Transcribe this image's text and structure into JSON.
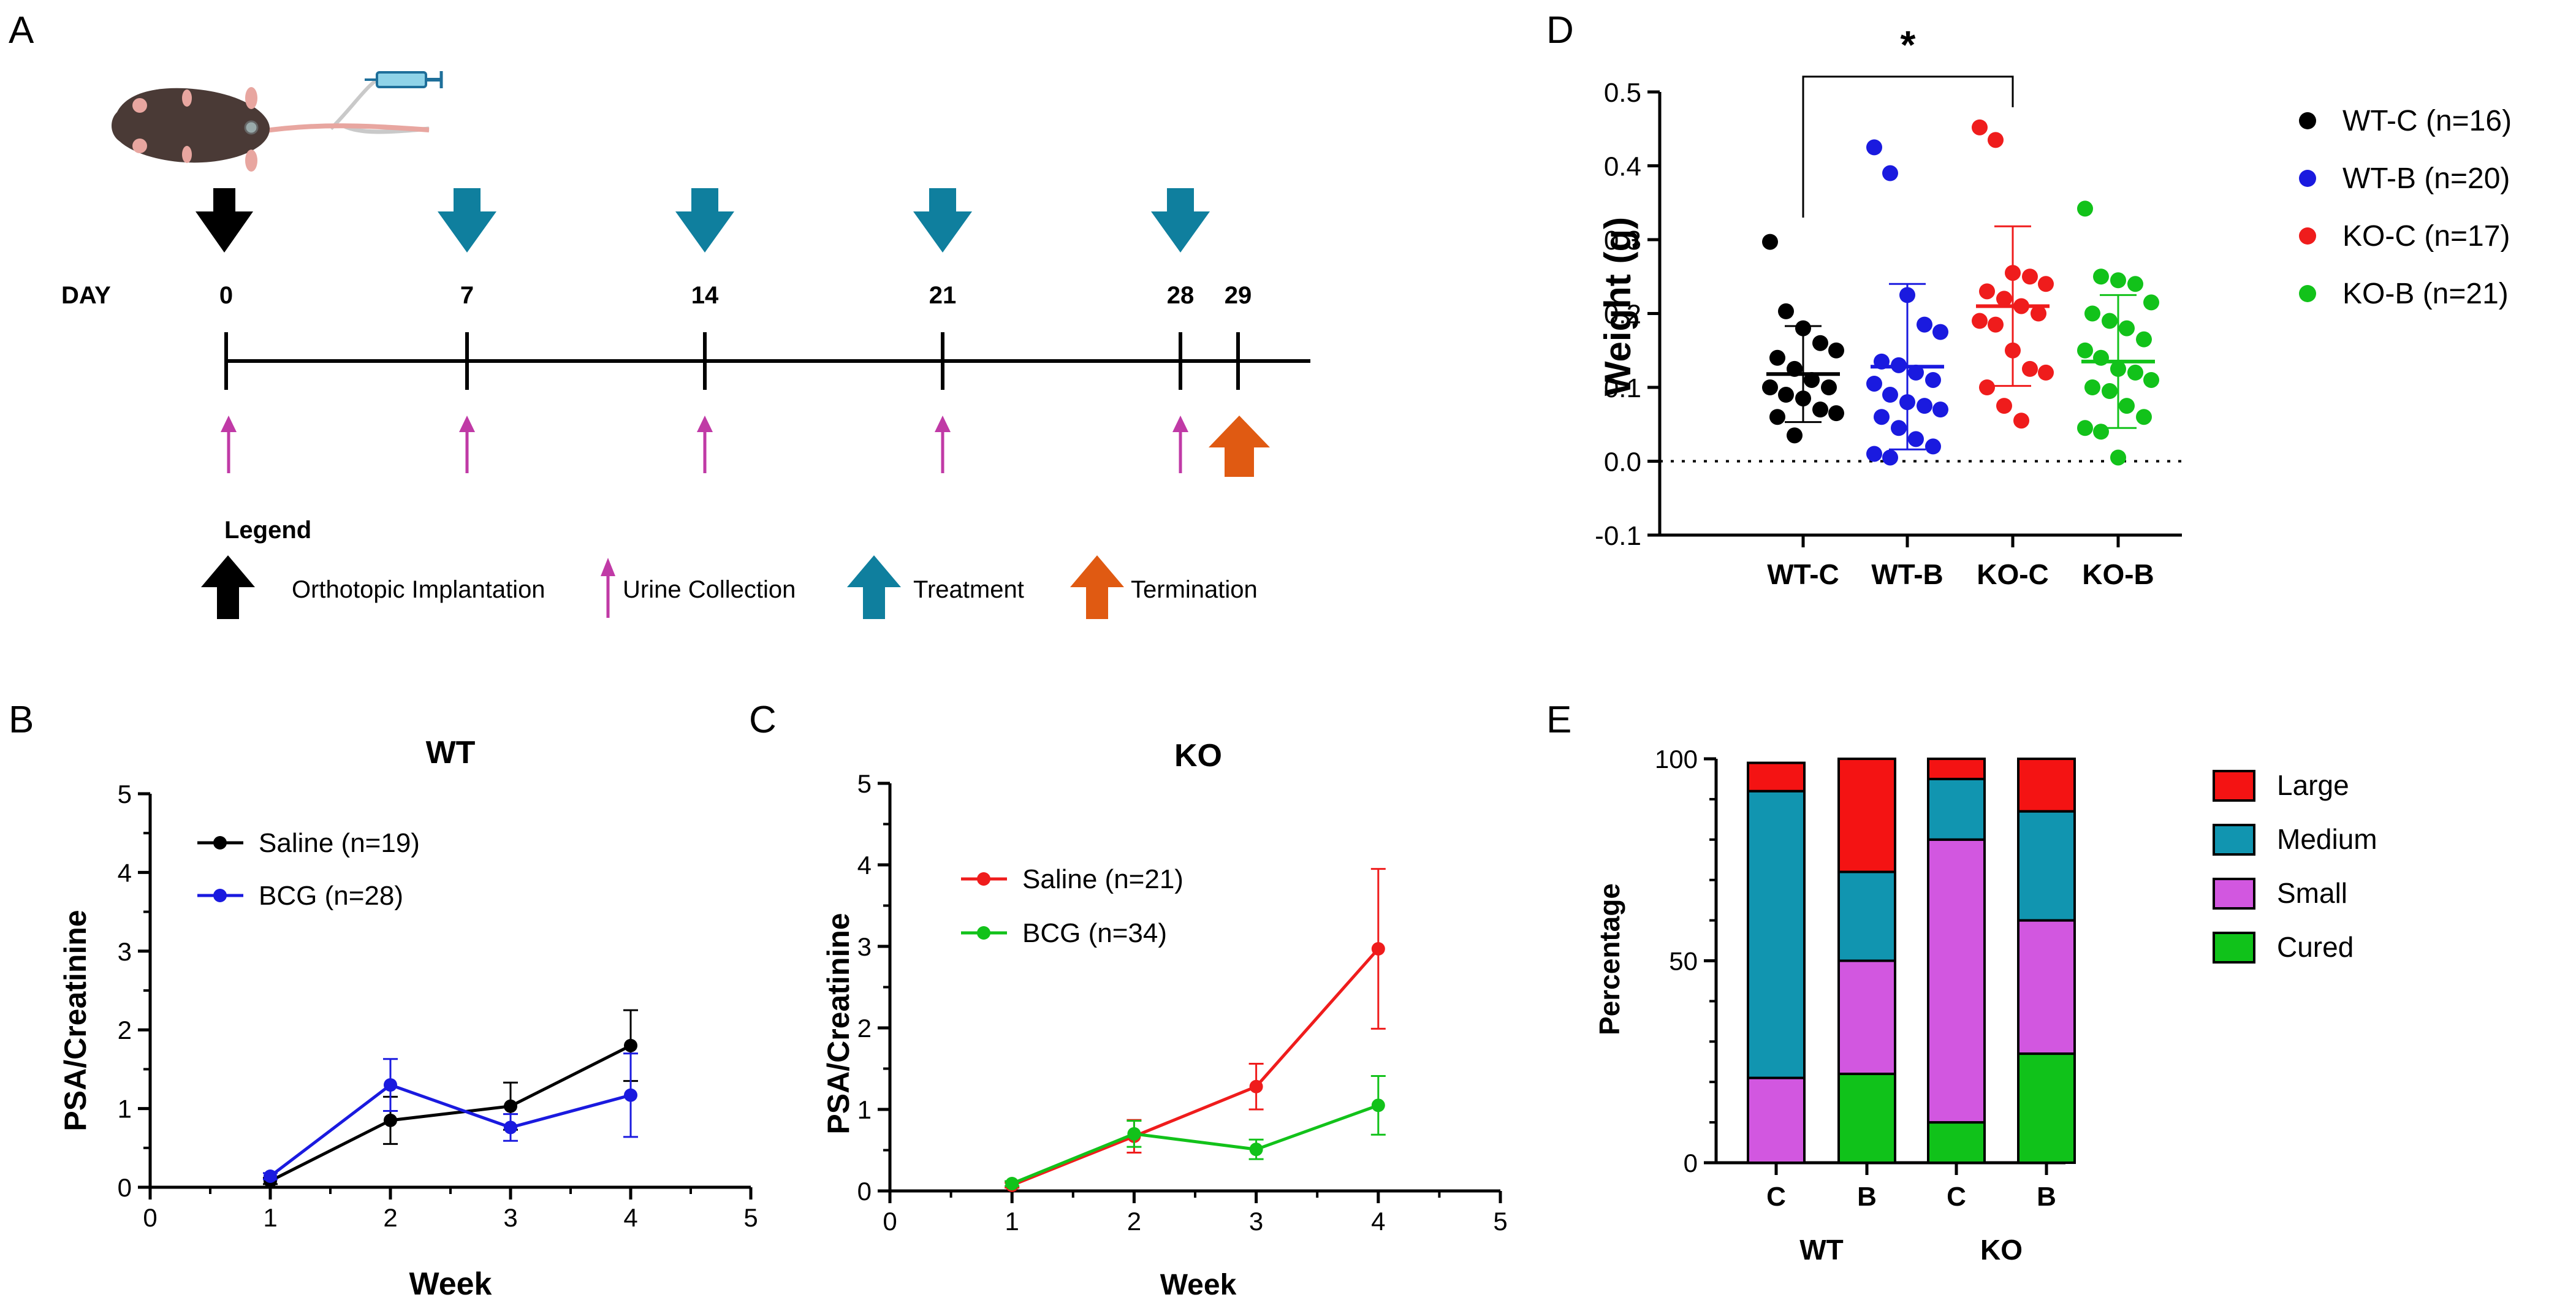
{
  "panel_letters": {
    "a": "A",
    "b": "B",
    "c": "C",
    "d": "D",
    "e": "E"
  },
  "timeline": {
    "day_label": "DAY",
    "days": [
      "0",
      "7",
      "14",
      "21",
      "28",
      "29"
    ],
    "legend_title": "Legend",
    "legend_items": [
      "Orthotopic Implantation",
      "Urine Collection",
      "Treatment",
      "Termination"
    ],
    "colors": {
      "implant": "#000000",
      "urine": "#c03aa6",
      "treatment": "#0f7f9e",
      "termination": "#e05a12"
    }
  },
  "chart_data": [
    {
      "id": "B",
      "type": "line",
      "title": "WT",
      "xlabel": "Week",
      "ylabel": "PSA/Creatinine",
      "xlim": [
        0,
        5
      ],
      "ylim": [
        0,
        5
      ],
      "xticks": [
        "0",
        "1",
        "2",
        "3",
        "4",
        "5"
      ],
      "yticks": [
        "0",
        "1",
        "2",
        "3",
        "4",
        "5"
      ],
      "legend_position": "top-left",
      "series": [
        {
          "name": "Saline (n=19)",
          "color": "#000000",
          "x": [
            1,
            2,
            3,
            4
          ],
          "y": [
            0.08,
            0.85,
            1.03,
            1.8
          ],
          "err": [
            0.04,
            0.3,
            0.3,
            0.45
          ]
        },
        {
          "name": "BCG (n=28)",
          "color": "#1a1adf",
          "x": [
            1,
            2,
            3,
            4
          ],
          "y": [
            0.14,
            1.3,
            0.76,
            1.17
          ],
          "err": [
            0.04,
            0.33,
            0.17,
            0.53
          ]
        }
      ]
    },
    {
      "id": "C",
      "type": "line",
      "title": "KO",
      "xlabel": "Week",
      "ylabel": "PSA/Creatinine",
      "xlim": [
        0,
        5
      ],
      "ylim": [
        0,
        5
      ],
      "xticks": [
        "0",
        "1",
        "2",
        "3",
        "4",
        "5"
      ],
      "yticks": [
        "0",
        "1",
        "2",
        "3",
        "4",
        "5"
      ],
      "legend_position": "top-left",
      "series": [
        {
          "name": "Saline (n=21)",
          "color": "#ef1c1c",
          "x": [
            1,
            2,
            3,
            4
          ],
          "y": [
            0.07,
            0.67,
            1.28,
            2.97
          ],
          "err": [
            0.03,
            0.2,
            0.28,
            0.98
          ]
        },
        {
          "name": "BCG (n=34)",
          "color": "#12c21a",
          "x": [
            1,
            2,
            3,
            4
          ],
          "y": [
            0.09,
            0.7,
            0.51,
            1.05
          ],
          "err": [
            0.03,
            0.16,
            0.12,
            0.36
          ]
        }
      ]
    },
    {
      "id": "D",
      "type": "scatter",
      "xlabel": "",
      "ylabel": "Weight (g)",
      "ylim": [
        -0.1,
        0.5
      ],
      "yticks": [
        "-0.1",
        "0.0",
        "0.1",
        "0.2",
        "0.3",
        "0.4",
        "0.5"
      ],
      "categories": [
        "WT-C",
        "WT-B",
        "KO-C",
        "KO-B"
      ],
      "legend_position": "right",
      "significance": {
        "from": "WT-C",
        "to": "KO-C",
        "label": "*"
      },
      "series": [
        {
          "name": "WT-C (n=16)",
          "color": "#000000",
          "mean": 0.118,
          "sd": 0.065,
          "points": [
            0.297,
            0.203,
            0.18,
            0.16,
            0.15,
            0.14,
            0.125,
            0.11,
            0.1,
            0.1,
            0.09,
            0.085,
            0.07,
            0.065,
            0.06,
            0.035
          ]
        },
        {
          "name": "WT-B (n=20)",
          "color": "#1a1adf",
          "mean": 0.128,
          "sd": 0.112,
          "points": [
            0.425,
            0.39,
            0.225,
            0.185,
            0.175,
            0.135,
            0.13,
            0.12,
            0.11,
            0.105,
            0.09,
            0.08,
            0.075,
            0.07,
            0.06,
            0.045,
            0.03,
            0.02,
            0.01,
            0.005
          ]
        },
        {
          "name": "KO-C (n=17)",
          "color": "#ef1c1c",
          "mean": 0.21,
          "sd": 0.108,
          "points": [
            0.452,
            0.435,
            0.255,
            0.25,
            0.24,
            0.23,
            0.22,
            0.21,
            0.2,
            0.19,
            0.185,
            0.15,
            0.125,
            0.12,
            0.1,
            0.075,
            0.055
          ]
        },
        {
          "name": "KO-B (n=21)",
          "color": "#12c21a",
          "mean": 0.135,
          "sd": 0.09,
          "points": [
            0.342,
            0.25,
            0.245,
            0.24,
            0.215,
            0.2,
            0.19,
            0.18,
            0.165,
            0.15,
            0.14,
            0.125,
            0.12,
            0.11,
            0.1,
            0.095,
            0.075,
            0.06,
            0.045,
            0.04,
            0.005
          ]
        }
      ]
    },
    {
      "id": "E",
      "type": "bar",
      "stacked": true,
      "xlabel": "",
      "ylabel": "Percentage",
      "ylim": [
        0,
        100
      ],
      "yticks": [
        "0",
        "50",
        "100"
      ],
      "categories": [
        "C",
        "B",
        "C",
        "B"
      ],
      "groups": [
        "WT",
        "KO"
      ],
      "legend_position": "right",
      "series": [
        {
          "name": "Cured",
          "color": "#10c21a",
          "values": [
            0,
            22,
            10,
            27
          ]
        },
        {
          "name": "Small",
          "color": "#d257e0",
          "values": [
            21,
            28,
            70,
            33
          ]
        },
        {
          "name": "Medium",
          "color": "#1195b0",
          "values": [
            71,
            22,
            15,
            27
          ]
        },
        {
          "name": "Large",
          "color": "#f41313",
          "values": [
            7,
            28,
            5,
            13
          ]
        }
      ]
    }
  ]
}
